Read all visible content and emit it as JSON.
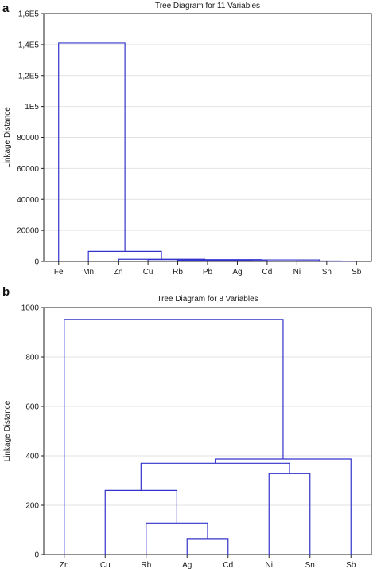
{
  "chart_data": [
    {
      "panel_label": "a",
      "type": "dendrogram",
      "title": "Tree Diagram for 11  Variables",
      "ylabel": "Linkage Distance",
      "ylim": [
        0,
        160000
      ],
      "yticks": [
        0,
        20000,
        40000,
        60000,
        80000,
        100000,
        120000,
        140000,
        160000
      ],
      "ytick_labels": [
        "0",
        "20000",
        "40000",
        "60000",
        "80000",
        "1E5",
        "1,2E5",
        "1,4E5",
        "1,6E5"
      ],
      "grid": true,
      "leaves": [
        "Fe",
        "Mn",
        "Zn",
        "Cu",
        "Rb",
        "Pb",
        "Ag",
        "Cd",
        "Ni",
        "Sn",
        "Sb"
      ],
      "merges": [
        {
          "left": "Sn",
          "right": "Sb",
          "height": 150
        },
        {
          "left": "Ni",
          "right": 0,
          "height": 300
        },
        {
          "left": "Ag",
          "right": "Cd",
          "height": 400
        },
        {
          "left": "Pb",
          "right": 2,
          "height": 600
        },
        {
          "left": "Rb",
          "right": 3,
          "height": 800
        },
        {
          "left": 4,
          "right": 1,
          "height": 1000
        },
        {
          "left": "Cu",
          "right": 5,
          "height": 1200
        },
        {
          "left": "Zn",
          "right": 6,
          "height": 1400
        },
        {
          "left": "Mn",
          "right": 7,
          "height": 6500
        },
        {
          "left": "Fe",
          "right": 8,
          "height": 141000
        }
      ]
    },
    {
      "panel_label": "b",
      "type": "dendrogram",
      "title": "Tree Diagram for 8   Variables",
      "ylabel": "Linkage Distance",
      "ylim": [
        0,
        1000
      ],
      "yticks": [
        0,
        200,
        400,
        600,
        800,
        1000
      ],
      "ytick_labels": [
        "0",
        "200",
        "400",
        "600",
        "800",
        "1000"
      ],
      "grid": true,
      "leaves": [
        "Zn",
        "Cu",
        "Rb",
        "Ag",
        "Cd",
        "Ni",
        "Sn",
        "Sb"
      ],
      "merges": [
        {
          "left": "Ag",
          "right": "Cd",
          "height": 65
        },
        {
          "left": "Rb",
          "right": 0,
          "height": 128
        },
        {
          "left": "Cu",
          "right": 1,
          "height": 260
        },
        {
          "left": "Ni",
          "right": "Sn",
          "height": 328
        },
        {
          "left": 2,
          "right": 3,
          "height": 370
        },
        {
          "left": 4,
          "right": "Sb",
          "height": 387
        },
        {
          "left": "Zn",
          "right": 5,
          "height": 952
        }
      ]
    }
  ],
  "colors": {
    "branch": "#3333cc",
    "axis": "#222222",
    "grid": "#e2e2e2"
  }
}
